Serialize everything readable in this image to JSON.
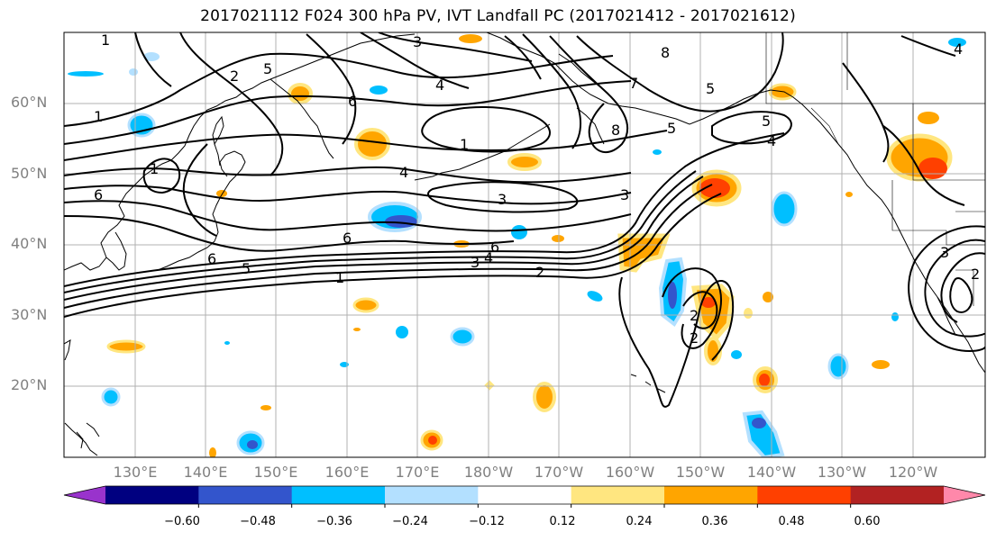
{
  "title": "2017021112 F024 300 hPa PV, IVT Landfall PC (2017021412 - 2017021612)",
  "lat_labels": [
    "60°N",
    "50°N",
    "40°N",
    "30°N",
    "20°N"
  ],
  "lon_labels": [
    "130°E",
    "140°E",
    "150°E",
    "160°E",
    "170°E",
    "180°W",
    "170°W",
    "160°W",
    "150°W",
    "140°W",
    "130°W",
    "120°W"
  ],
  "contour_labels": [
    "1",
    "2",
    "3",
    "4",
    "5",
    "6",
    "7",
    "8",
    "1",
    "1",
    "4",
    "3",
    "6",
    "5",
    "1",
    "2",
    "3",
    "4",
    "6",
    "1",
    "6",
    "5",
    "4",
    "5",
    "8",
    "2",
    "3",
    "2",
    "4",
    "3",
    "2",
    "5",
    "6"
  ],
  "colorbar": {
    "ticks": [
      "−0.60",
      "−0.48",
      "−0.36",
      "−0.24",
      "−0.12",
      "0.12",
      "0.24",
      "0.36",
      "0.48",
      "0.60"
    ],
    "colors": [
      "#9933cc",
      "#000080",
      "#3355cc",
      "#00bfff",
      "#b3e0ff",
      "#ffffff",
      "#ffe680",
      "#ffa500",
      "#ff4000",
      "#b22222",
      "#ff88aa"
    ]
  }
}
